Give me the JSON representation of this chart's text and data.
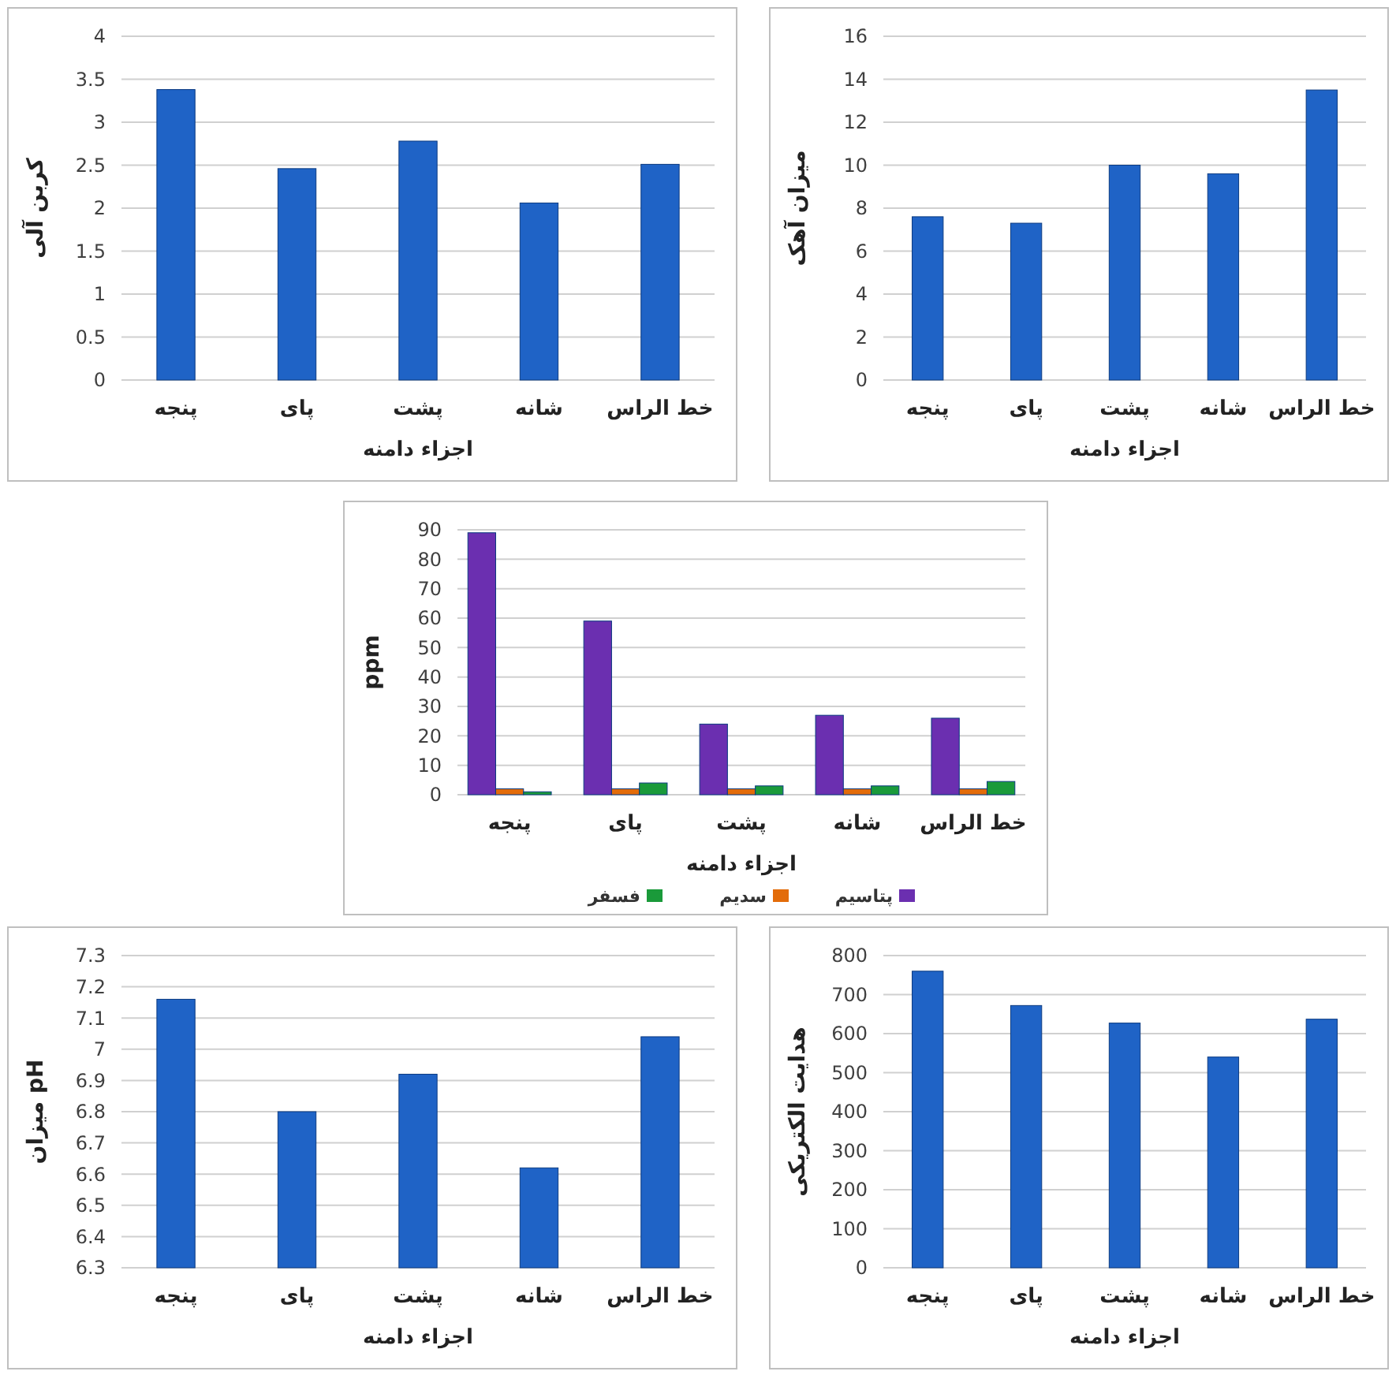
{
  "chart_data": [
    {
      "type": "bar",
      "xlabel": "اجزاء دامنه",
      "ylabel": "کربن آلی",
      "categories": [
        "پنجه",
        "پای",
        "پشت",
        "شانه",
        "خط الراس"
      ],
      "values": [
        3.38,
        2.46,
        2.78,
        2.06,
        2.51
      ],
      "color": "#1f63c6",
      "ylim": [
        0,
        4
      ],
      "yticks": [
        0,
        0.5,
        1,
        1.5,
        2,
        2.5,
        3,
        3.5,
        4
      ],
      "grid": "y"
    },
    {
      "type": "bar",
      "xlabel": "اجزاء دامنه",
      "ylabel": "میزان آهک",
      "categories": [
        "پنجه",
        "پای",
        "پشت",
        "شانه",
        "خط الراس"
      ],
      "values": [
        7.6,
        7.3,
        10,
        9.6,
        13.5
      ],
      "color": "#1f63c6",
      "ylim": [
        0,
        16
      ],
      "yticks": [
        0,
        2,
        4,
        6,
        8,
        10,
        12,
        14,
        16
      ],
      "grid": "y"
    },
    {
      "type": "bar",
      "xlabel": "اجزاء دامنه",
      "ylabel": "ppm",
      "categories": [
        "پنجه",
        "پای",
        "پشت",
        "شانه",
        "خط الراس"
      ],
      "series": [
        {
          "name": "پتاسیم",
          "color": "#6b2fb0",
          "values": [
            89,
            59,
            24,
            27,
            26
          ]
        },
        {
          "name": "سدیم",
          "color": "#e36c0a",
          "values": [
            2,
            2,
            2,
            2,
            2
          ]
        },
        {
          "name": "فسفر",
          "color": "#1a9a3a",
          "values": [
            1,
            4,
            3,
            3,
            4.5
          ]
        }
      ],
      "ylim": [
        0,
        90
      ],
      "yticks": [
        0,
        10,
        20,
        30,
        40,
        50,
        60,
        70,
        80,
        90
      ],
      "grid": "y",
      "legend": "bottom"
    },
    {
      "type": "bar",
      "xlabel": "اجزاء دامنه",
      "ylabel": "میزان pH",
      "categories": [
        "پنجه",
        "پای",
        "پشت",
        "شانه",
        "خط الراس"
      ],
      "values": [
        7.16,
        6.8,
        6.92,
        6.62,
        7.04
      ],
      "color": "#1f63c6",
      "ylim": [
        6.3,
        7.3
      ],
      "yticks": [
        6.3,
        6.4,
        6.5,
        6.6,
        6.7,
        6.8,
        6.9,
        7,
        7.1,
        7.2,
        7.3
      ],
      "grid": "y"
    },
    {
      "type": "bar",
      "xlabel": "اجزاء دامنه",
      "ylabel": "هدایت الکتریکی",
      "categories": [
        "پنجه",
        "پای",
        "پشت",
        "شانه",
        "خط الراس"
      ],
      "values": [
        760,
        672,
        627,
        540,
        637
      ],
      "color": "#1f63c6",
      "ylim": [
        0,
        800
      ],
      "yticks": [
        0,
        100,
        200,
        300,
        400,
        500,
        600,
        700,
        800
      ],
      "grid": "y"
    }
  ]
}
